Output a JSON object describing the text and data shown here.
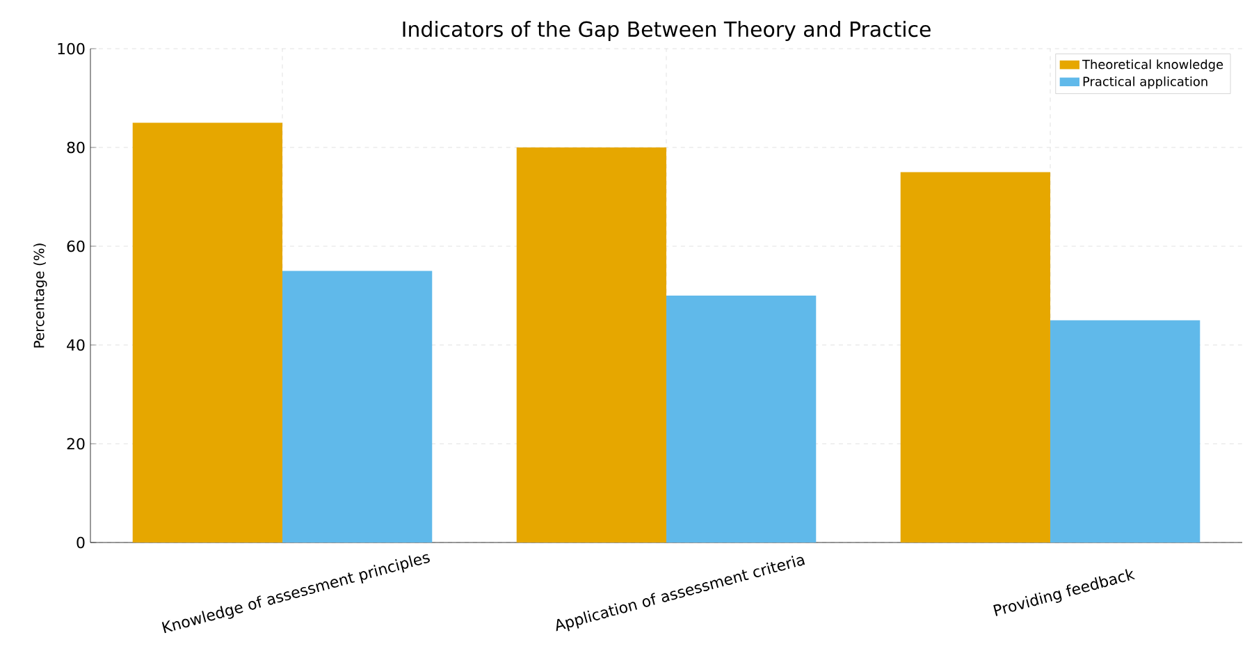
{
  "chart_data": {
    "type": "bar",
    "title": "Indicators of the Gap Between Theory and Practice",
    "ylabel": "Percentage (%)",
    "categories": [
      "Knowledge of assessment principles",
      "Application of assessment criteria",
      "Providing feedback"
    ],
    "series": [
      {
        "name": "Theoretical knowledge",
        "color": "#e6a700",
        "values": [
          85,
          80,
          75
        ]
      },
      {
        "name": "Practical application",
        "color": "#60b9ea",
        "values": [
          55,
          50,
          45
        ]
      }
    ],
    "ylim": [
      0,
      100
    ],
    "yticks": [
      0,
      20,
      40,
      60,
      80,
      100
    ],
    "grid": true,
    "legend": "top right"
  }
}
